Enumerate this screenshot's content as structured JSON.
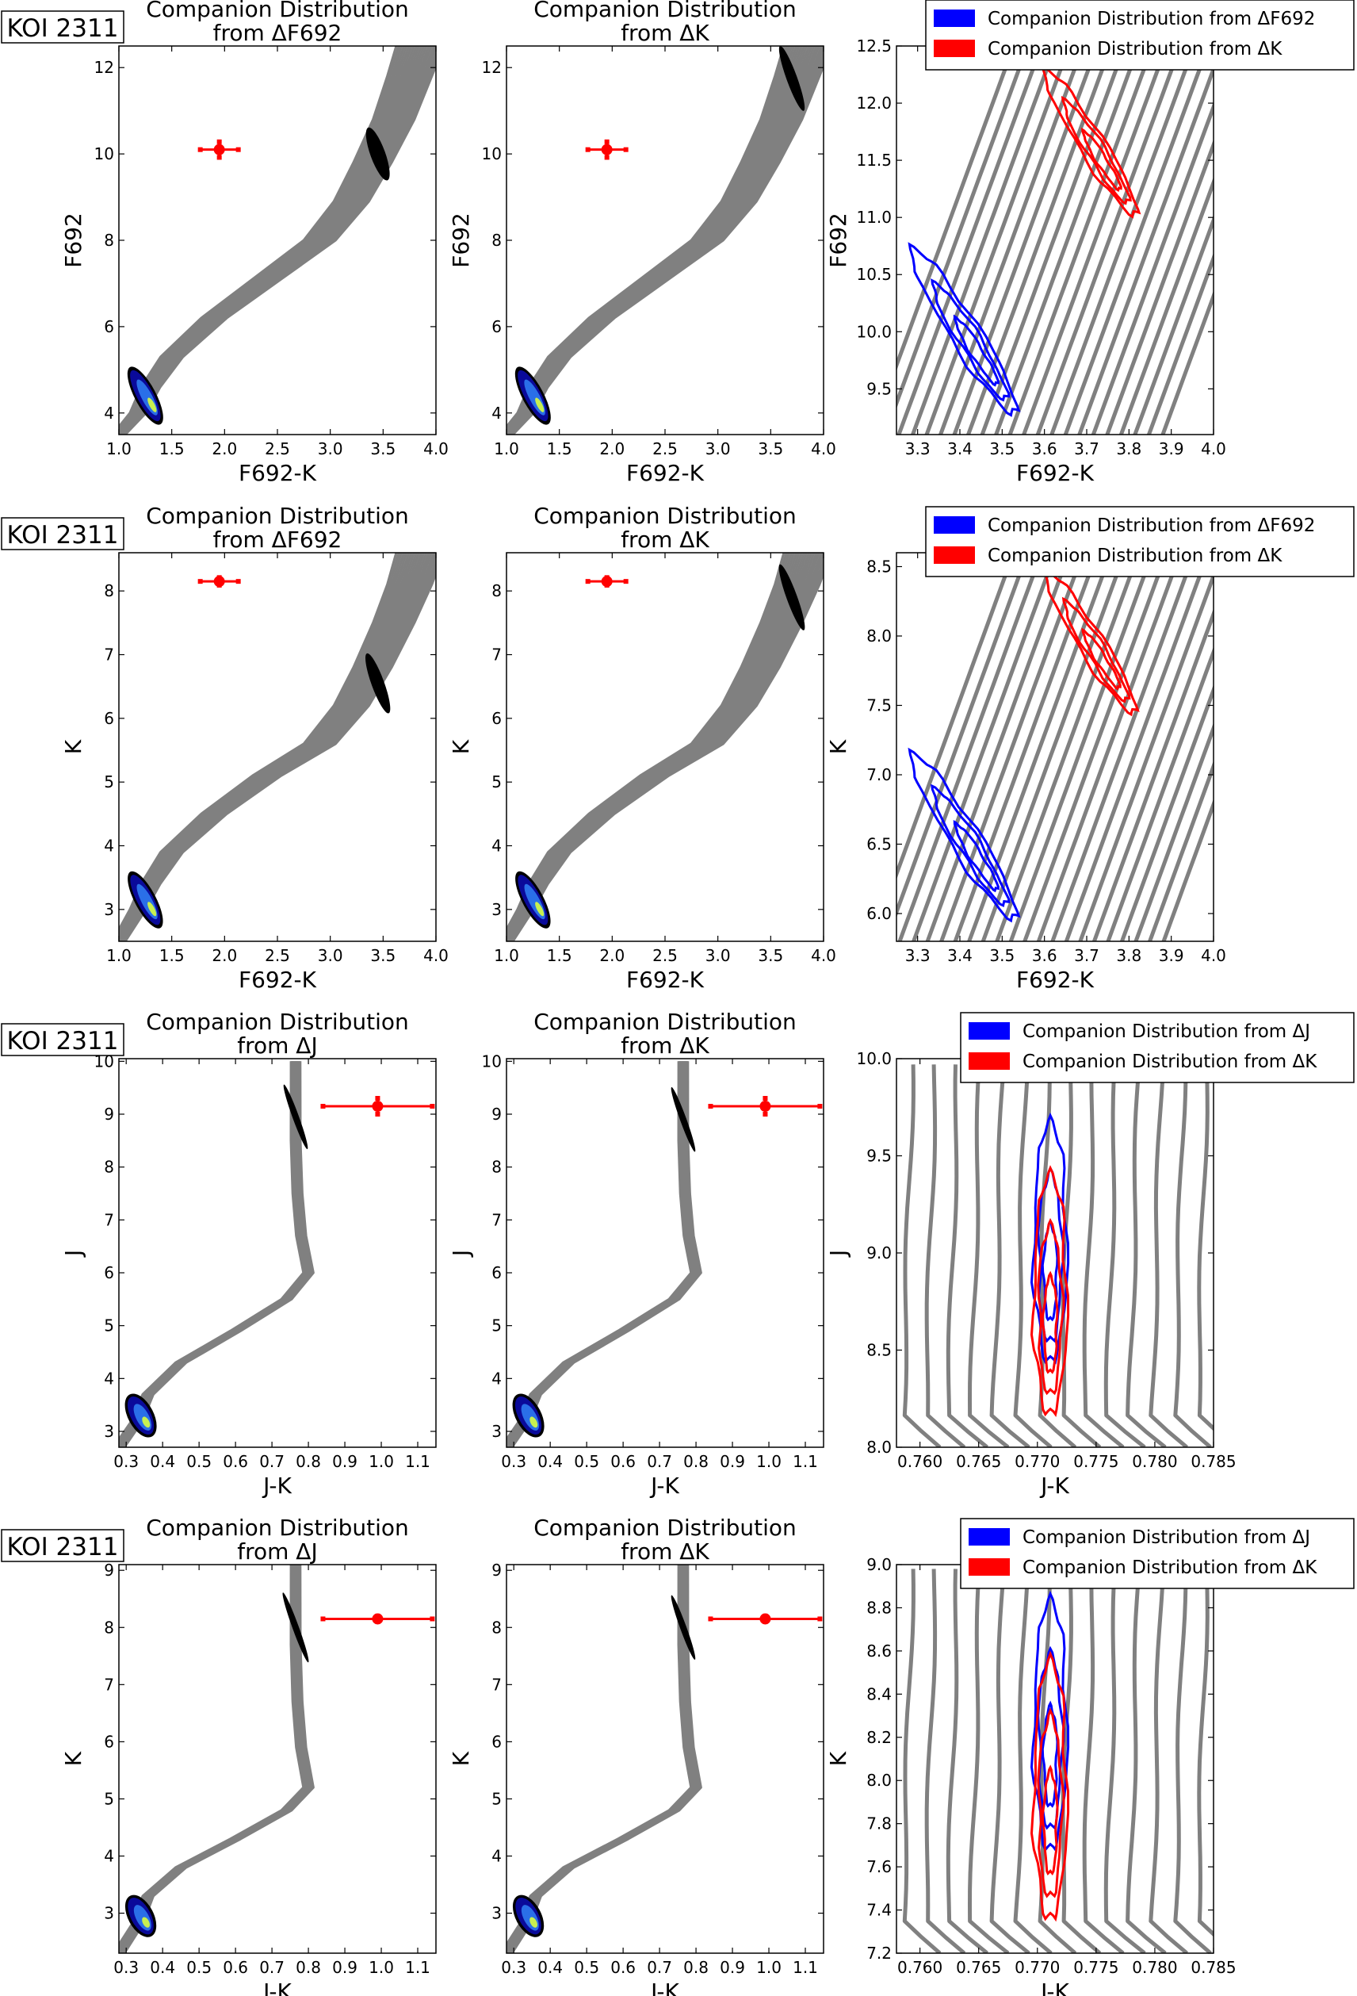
{
  "colors": {
    "isochrone": "#808080",
    "companion_primary": "#0000ff",
    "companion_k": "#ff0000",
    "errorbar": "#ff0000",
    "fill_dark": "#000000",
    "fill_mid": "#1414c8",
    "fill_light": "#c8f050"
  },
  "chart_data": [
    {
      "type": "line",
      "row": 0,
      "col": 0,
      "label_box": "KOI 2311",
      "title": "Companion Distribution\nfrom ΔF692",
      "xlabel": "F692-K",
      "ylabel": "F692",
      "xlim": [
        1.0,
        4.0
      ],
      "ylim": [
        12.5,
        3.5
      ],
      "xticks": [
        "1.0",
        "1.5",
        "2.0",
        "2.5",
        "3.0",
        "3.5",
        "4.0"
      ],
      "yticks": [
        "4",
        "6",
        "8",
        "10",
        "12"
      ],
      "isochrone": [
        [
          1.0,
          3.5
        ],
        [
          1.18,
          4.0
        ],
        [
          1.3,
          4.6
        ],
        [
          1.5,
          5.3
        ],
        [
          1.9,
          6.2
        ],
        [
          2.4,
          7.1
        ],
        [
          2.9,
          8.0
        ],
        [
          3.2,
          8.9
        ],
        [
          3.4,
          9.8
        ],
        [
          3.6,
          10.8
        ],
        [
          3.75,
          11.8
        ],
        [
          3.85,
          12.5
        ]
      ],
      "band_width": [
        0.12,
        0.45
      ],
      "blobs": [
        {
          "x": 1.25,
          "y": 4.4,
          "rx": 0.1,
          "ry": 0.75
        },
        {
          "x": 3.45,
          "y": 10.0,
          "rx": 0.07,
          "ry": 0.65
        }
      ],
      "blob_style": [
        "rich",
        "dark"
      ],
      "errorbar": {
        "x": 1.95,
        "y": 10.1,
        "xerr": 0.18,
        "yerr": 0.18
      }
    },
    {
      "type": "line",
      "row": 0,
      "col": 1,
      "title": "Companion Distribution\nfrom ΔK",
      "xlabel": "F692-K",
      "ylabel": "F692",
      "xlim": [
        1.0,
        4.0
      ],
      "ylim": [
        12.5,
        3.5
      ],
      "xticks": [
        "1.0",
        "1.5",
        "2.0",
        "2.5",
        "3.0",
        "3.5",
        "4.0"
      ],
      "yticks": [
        "4",
        "6",
        "8",
        "10",
        "12"
      ],
      "isochrone": [
        [
          1.0,
          3.5
        ],
        [
          1.18,
          4.0
        ],
        [
          1.3,
          4.6
        ],
        [
          1.5,
          5.3
        ],
        [
          1.9,
          6.2
        ],
        [
          2.4,
          7.1
        ],
        [
          2.9,
          8.0
        ],
        [
          3.2,
          8.9
        ],
        [
          3.4,
          9.8
        ],
        [
          3.6,
          10.8
        ],
        [
          3.75,
          11.8
        ],
        [
          3.85,
          12.5
        ]
      ],
      "band_width": [
        0.12,
        0.45
      ],
      "blobs": [
        {
          "x": 1.25,
          "y": 4.4,
          "rx": 0.1,
          "ry": 0.75
        },
        {
          "x": 3.7,
          "y": 11.75,
          "rx": 0.05,
          "ry": 0.8
        }
      ],
      "blob_style": [
        "rich",
        "dark"
      ],
      "errorbar": {
        "x": 1.95,
        "y": 10.1,
        "xerr": 0.18,
        "yerr": 0.18
      }
    },
    {
      "type": "line",
      "row": 0,
      "col": 2,
      "xlabel": "F692-K",
      "ylabel": "F692",
      "xlim": [
        3.25,
        4.0
      ],
      "ylim": [
        12.5,
        9.1
      ],
      "xticks": [
        "3.3",
        "3.4",
        "3.5",
        "3.6",
        "3.7",
        "3.8",
        "3.9",
        "4.0"
      ],
      "yticks": [
        "9.5",
        "10.0",
        "10.5",
        "11.0",
        "11.5",
        "12.0",
        "12.5"
      ],
      "tracks": {
        "n": 22,
        "x0": 3.18,
        "x1": 3.62,
        "y0": 9.0,
        "y1": 12.5,
        "dx": 0.31
      },
      "contours": [
        {
          "color": "companion_primary",
          "x": 3.41,
          "y": 10.0,
          "rx": 0.035,
          "ry": 0.85,
          "nest": 3
        },
        {
          "color": "companion_k",
          "x": 3.71,
          "y": 11.65,
          "rx": 0.03,
          "ry": 0.75,
          "nest": 3
        }
      ],
      "legend": [
        "Companion Distribution from ΔF692",
        "Companion Distribution from ΔK"
      ]
    },
    {
      "type": "line",
      "row": 1,
      "col": 0,
      "label_box": "KOI 2311",
      "title": "Companion Distribution\nfrom ΔF692",
      "xlabel": "F692-K",
      "ylabel": "K",
      "xlim": [
        1.0,
        4.0
      ],
      "ylim": [
        8.6,
        2.5
      ],
      "xticks": [
        "1.0",
        "1.5",
        "2.0",
        "2.5",
        "3.0",
        "3.5",
        "4.0"
      ],
      "yticks": [
        "3",
        "4",
        "5",
        "6",
        "7",
        "8"
      ],
      "isochrone": [
        [
          1.0,
          2.5
        ],
        [
          1.18,
          3.0
        ],
        [
          1.3,
          3.4
        ],
        [
          1.5,
          3.9
        ],
        [
          1.9,
          4.5
        ],
        [
          2.4,
          5.1
        ],
        [
          2.9,
          5.6
        ],
        [
          3.2,
          6.2
        ],
        [
          3.4,
          6.8
        ],
        [
          3.6,
          7.5
        ],
        [
          3.75,
          8.1
        ],
        [
          3.85,
          8.6
        ]
      ],
      "band_width": [
        0.12,
        0.45
      ],
      "blobs": [
        {
          "x": 1.25,
          "y": 3.15,
          "rx": 0.1,
          "ry": 0.5
        },
        {
          "x": 3.45,
          "y": 6.55,
          "rx": 0.06,
          "ry": 0.5
        }
      ],
      "blob_style": [
        "rich",
        "dark"
      ],
      "errorbar": {
        "x": 1.95,
        "y": 8.15,
        "xerr": 0.18,
        "yerr": 0.06
      }
    },
    {
      "type": "line",
      "row": 1,
      "col": 1,
      "title": "Companion Distribution\nfrom ΔK",
      "xlabel": "F692-K",
      "ylabel": "K",
      "xlim": [
        1.0,
        4.0
      ],
      "ylim": [
        8.6,
        2.5
      ],
      "xticks": [
        "1.0",
        "1.5",
        "2.0",
        "2.5",
        "3.0",
        "3.5",
        "4.0"
      ],
      "yticks": [
        "3",
        "4",
        "5",
        "6",
        "7",
        "8"
      ],
      "isochrone": [
        [
          1.0,
          2.5
        ],
        [
          1.18,
          3.0
        ],
        [
          1.3,
          3.4
        ],
        [
          1.5,
          3.9
        ],
        [
          1.9,
          4.5
        ],
        [
          2.4,
          5.1
        ],
        [
          2.9,
          5.6
        ],
        [
          3.2,
          6.2
        ],
        [
          3.4,
          6.8
        ],
        [
          3.6,
          7.5
        ],
        [
          3.75,
          8.1
        ],
        [
          3.85,
          8.6
        ]
      ],
      "band_width": [
        0.12,
        0.45
      ],
      "blobs": [
        {
          "x": 1.25,
          "y": 3.15,
          "rx": 0.1,
          "ry": 0.5
        },
        {
          "x": 3.7,
          "y": 7.9,
          "rx": 0.05,
          "ry": 0.55
        }
      ],
      "blob_style": [
        "rich",
        "dark"
      ],
      "errorbar": {
        "x": 1.95,
        "y": 8.15,
        "xerr": 0.18,
        "yerr": 0.06
      }
    },
    {
      "type": "line",
      "row": 1,
      "col": 2,
      "xlabel": "F692-K",
      "ylabel": "K",
      "xlim": [
        3.25,
        4.0
      ],
      "ylim": [
        8.6,
        5.8
      ],
      "xticks": [
        "3.3",
        "3.4",
        "3.5",
        "3.6",
        "3.7",
        "3.8",
        "3.9",
        "4.0"
      ],
      "yticks": [
        "6.0",
        "6.5",
        "7.0",
        "7.5",
        "8.0",
        "8.5"
      ],
      "tracks": {
        "n": 22,
        "x0": 3.18,
        "x1": 3.62,
        "y0": 5.7,
        "y1": 8.6,
        "dx": 0.31
      },
      "contours": [
        {
          "color": "companion_primary",
          "x": 3.41,
          "y": 6.55,
          "rx": 0.035,
          "ry": 0.7,
          "nest": 3
        },
        {
          "color": "companion_k",
          "x": 3.71,
          "y": 7.95,
          "rx": 0.03,
          "ry": 0.6,
          "nest": 3
        }
      ],
      "legend": [
        "Companion Distribution from ΔF692",
        "Companion Distribution from ΔK"
      ]
    },
    {
      "type": "line",
      "row": 2,
      "col": 0,
      "label_box": "KOI 2311",
      "title": "Companion Distribution\nfrom ΔJ",
      "xlabel": "J-K",
      "ylabel": "J",
      "xlim": [
        0.28,
        1.15
      ],
      "ylim": [
        10.05,
        2.7
      ],
      "xticks": [
        "0.3",
        "0.4",
        "0.5",
        "0.6",
        "0.7",
        "0.8",
        "0.9",
        "1.0",
        "1.1"
      ],
      "yticks": [
        "3",
        "4",
        "5",
        "6",
        "7",
        "8",
        "9",
        "10"
      ],
      "isochrone": [
        [
          0.28,
          2.7
        ],
        [
          0.33,
          3.2
        ],
        [
          0.36,
          3.7
        ],
        [
          0.45,
          4.3
        ],
        [
          0.6,
          4.9
        ],
        [
          0.74,
          5.5
        ],
        [
          0.8,
          6.0
        ],
        [
          0.78,
          6.7
        ],
        [
          0.77,
          7.5
        ],
        [
          0.765,
          8.5
        ],
        [
          0.765,
          10.0
        ]
      ],
      "band_width": [
        0.03,
        0.025
      ],
      "blobs": [
        {
          "x": 0.34,
          "y": 3.3,
          "rx": 0.035,
          "ry": 0.45
        },
        {
          "x": 0.765,
          "y": 8.95,
          "rx": 0.006,
          "ry": 0.65
        }
      ],
      "blob_style": [
        "rich",
        "dark"
      ],
      "errorbar": {
        "x": 0.99,
        "y": 9.15,
        "xerr": 0.15,
        "yerr": 0.15
      }
    },
    {
      "type": "line",
      "row": 2,
      "col": 1,
      "title": "Companion Distribution\nfrom ΔK",
      "xlabel": "J-K",
      "ylabel": "J",
      "xlim": [
        0.28,
        1.15
      ],
      "ylim": [
        10.05,
        2.7
      ],
      "xticks": [
        "0.3",
        "0.4",
        "0.5",
        "0.6",
        "0.7",
        "0.8",
        "0.9",
        "1.0",
        "1.1"
      ],
      "yticks": [
        "3",
        "4",
        "5",
        "6",
        "7",
        "8",
        "9",
        "10"
      ],
      "isochrone": [
        [
          0.28,
          2.7
        ],
        [
          0.33,
          3.2
        ],
        [
          0.36,
          3.7
        ],
        [
          0.45,
          4.3
        ],
        [
          0.6,
          4.9
        ],
        [
          0.74,
          5.5
        ],
        [
          0.8,
          6.0
        ],
        [
          0.78,
          6.7
        ],
        [
          0.77,
          7.5
        ],
        [
          0.765,
          8.5
        ],
        [
          0.765,
          10.0
        ]
      ],
      "band_width": [
        0.03,
        0.025
      ],
      "blobs": [
        {
          "x": 0.34,
          "y": 3.3,
          "rx": 0.035,
          "ry": 0.45
        },
        {
          "x": 0.765,
          "y": 8.9,
          "rx": 0.006,
          "ry": 0.65
        }
      ],
      "blob_style": [
        "rich",
        "dark"
      ],
      "errorbar": {
        "x": 0.99,
        "y": 9.15,
        "xerr": 0.15,
        "yerr": 0.15
      }
    },
    {
      "type": "line",
      "row": 2,
      "col": 2,
      "xlabel": "J-K",
      "ylabel": "J",
      "xlim": [
        0.758,
        0.785
      ],
      "ylim": [
        10.0,
        8.0
      ],
      "xticks": [
        "0.760",
        "0.765",
        "0.770",
        "0.775",
        "0.780",
        "0.785"
      ],
      "yticks": [
        "8.0",
        "8.5",
        "9.0",
        "9.5",
        "10.0"
      ],
      "tracks": {
        "n": 15,
        "x0": 0.7585,
        "x1": 0.7585,
        "y0": 8.0,
        "y1": 9.97,
        "dx": 0.0017,
        "wiggle": 0.0006
      },
      "contours": [
        {
          "color": "companion_primary",
          "x": 0.7711,
          "y": 9.05,
          "rx": 0.0014,
          "ry": 0.62,
          "nest": 3
        },
        {
          "color": "companion_k",
          "x": 0.7711,
          "y": 8.78,
          "rx": 0.0014,
          "ry": 0.62,
          "nest": 3
        }
      ],
      "legend": [
        "Companion Distribution from ΔJ",
        "Companion Distribution from ΔK"
      ]
    },
    {
      "type": "line",
      "row": 3,
      "col": 0,
      "label_box": "KOI 2311",
      "title": "Companion Distribution\nfrom ΔJ",
      "xlabel": "J-K",
      "ylabel": "K",
      "xlim": [
        0.28,
        1.15
      ],
      "ylim": [
        9.1,
        2.3
      ],
      "xticks": [
        "0.3",
        "0.4",
        "0.5",
        "0.6",
        "0.7",
        "0.8",
        "0.9",
        "1.0",
        "1.1"
      ],
      "yticks": [
        "3",
        "4",
        "5",
        "6",
        "7",
        "8",
        "9"
      ],
      "isochrone": [
        [
          0.28,
          2.3
        ],
        [
          0.33,
          2.8
        ],
        [
          0.36,
          3.3
        ],
        [
          0.45,
          3.8
        ],
        [
          0.6,
          4.3
        ],
        [
          0.74,
          4.8
        ],
        [
          0.8,
          5.2
        ],
        [
          0.78,
          5.9
        ],
        [
          0.77,
          6.7
        ],
        [
          0.765,
          7.7
        ],
        [
          0.765,
          9.1
        ]
      ],
      "band_width": [
        0.03,
        0.025
      ],
      "blobs": [
        {
          "x": 0.34,
          "y": 2.95,
          "rx": 0.035,
          "ry": 0.4
        },
        {
          "x": 0.765,
          "y": 8.0,
          "rx": 0.006,
          "ry": 0.65
        }
      ],
      "blob_style": [
        "rich",
        "dark"
      ],
      "errorbar": {
        "x": 0.99,
        "y": 8.15,
        "xerr": 0.15,
        "yerr": 0.05
      }
    },
    {
      "type": "line",
      "row": 3,
      "col": 1,
      "title": "Companion Distribution\nfrom ΔK",
      "xlabel": "J-K",
      "ylabel": "K",
      "xlim": [
        0.28,
        1.15
      ],
      "ylim": [
        9.1,
        2.3
      ],
      "xticks": [
        "0.3",
        "0.4",
        "0.5",
        "0.6",
        "0.7",
        "0.8",
        "0.9",
        "1.0",
        "1.1"
      ],
      "yticks": [
        "3",
        "4",
        "5",
        "6",
        "7",
        "8",
        "9"
      ],
      "isochrone": [
        [
          0.28,
          2.3
        ],
        [
          0.33,
          2.8
        ],
        [
          0.36,
          3.3
        ],
        [
          0.45,
          3.8
        ],
        [
          0.6,
          4.3
        ],
        [
          0.74,
          4.8
        ],
        [
          0.8,
          5.2
        ],
        [
          0.78,
          5.9
        ],
        [
          0.77,
          6.7
        ],
        [
          0.765,
          7.7
        ],
        [
          0.765,
          9.1
        ]
      ],
      "band_width": [
        0.03,
        0.025
      ],
      "blobs": [
        {
          "x": 0.34,
          "y": 2.95,
          "rx": 0.035,
          "ry": 0.4
        },
        {
          "x": 0.765,
          "y": 8.0,
          "rx": 0.006,
          "ry": 0.6
        }
      ],
      "blob_style": [
        "rich",
        "dark"
      ],
      "errorbar": {
        "x": 0.99,
        "y": 8.15,
        "xerr": 0.15,
        "yerr": 0.05
      }
    },
    {
      "type": "line",
      "row": 3,
      "col": 2,
      "xlabel": "J-K",
      "ylabel": "K",
      "xlim": [
        0.758,
        0.785
      ],
      "ylim": [
        9.0,
        7.2
      ],
      "xticks": [
        "0.760",
        "0.765",
        "0.770",
        "0.775",
        "0.780",
        "0.785"
      ],
      "yticks": [
        "7.2",
        "7.4",
        "7.6",
        "7.8",
        "8.0",
        "8.2",
        "8.4",
        "8.6",
        "8.8",
        "9.0"
      ],
      "tracks": {
        "n": 15,
        "x0": 0.7585,
        "x1": 0.7585,
        "y0": 7.2,
        "y1": 8.98,
        "dx": 0.0017,
        "wiggle": 0.0006
      },
      "contours": [
        {
          "color": "companion_primary",
          "x": 0.7711,
          "y": 8.25,
          "rx": 0.0014,
          "ry": 0.58,
          "nest": 3
        },
        {
          "color": "companion_k",
          "x": 0.7711,
          "y": 7.95,
          "rx": 0.0014,
          "ry": 0.6,
          "nest": 3
        }
      ],
      "legend": [
        "Companion Distribution from ΔJ",
        "Companion Distribution from ΔK"
      ]
    }
  ]
}
